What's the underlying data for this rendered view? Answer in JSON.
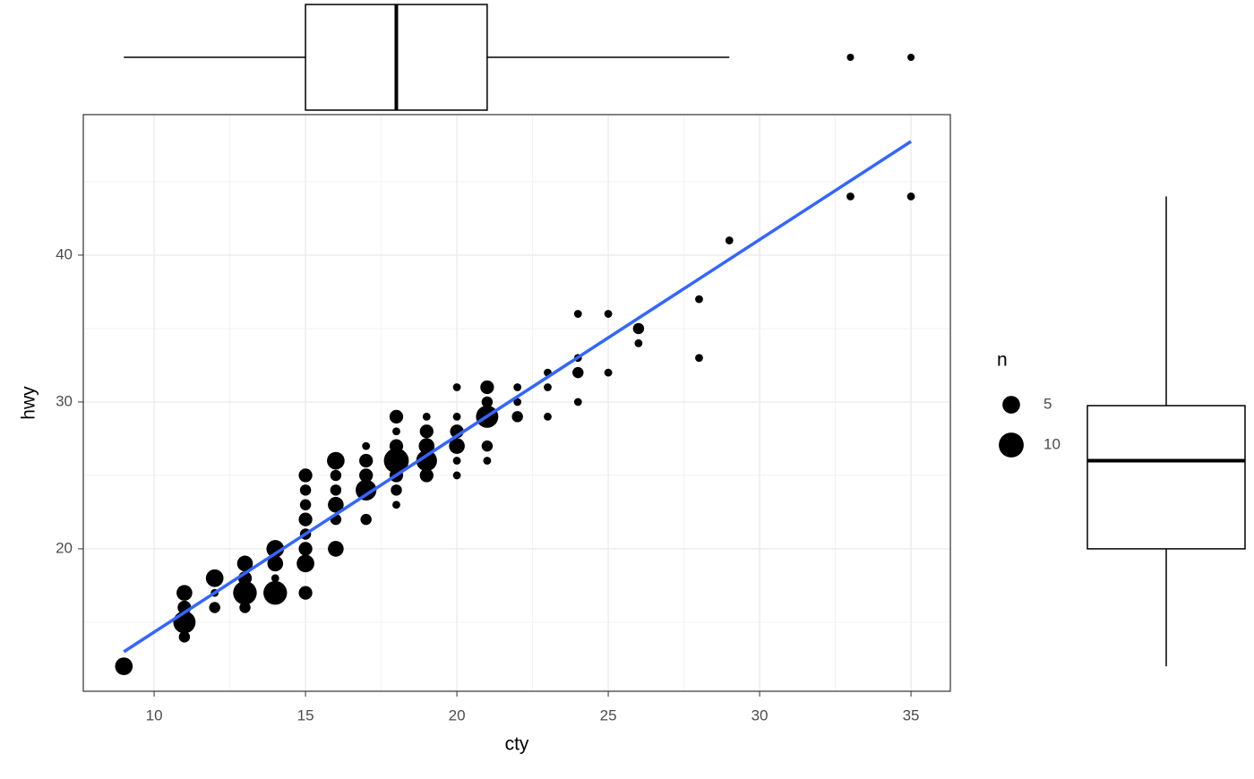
{
  "chart_data": [
    {
      "type": "scatter",
      "x_label": "cty",
      "y_label": "hwy",
      "x": [
        9,
        11,
        11,
        11,
        11,
        12,
        12,
        12,
        13,
        13,
        13,
        13,
        14,
        14,
        14,
        14,
        15,
        15,
        15,
        15,
        15,
        15,
        15,
        15,
        16,
        16,
        16,
        16,
        16,
        16,
        17,
        17,
        17,
        17,
        17,
        18,
        18,
        18,
        18,
        18,
        18,
        18,
        19,
        19,
        19,
        19,
        19,
        20,
        20,
        20,
        20,
        20,
        20,
        21,
        21,
        21,
        21,
        21,
        22,
        22,
        22,
        23,
        23,
        23,
        24,
        24,
        24,
        24,
        25,
        25,
        26,
        26,
        28,
        28,
        29,
        33,
        35
      ],
      "values": [
        12,
        17,
        16,
        15,
        14,
        18,
        16,
        17,
        19,
        17,
        18,
        16,
        20,
        19,
        17,
        18,
        25,
        24,
        23,
        22,
        21,
        20,
        19,
        17,
        26,
        25,
        24,
        23,
        22,
        20,
        27,
        26,
        25,
        24,
        22,
        29,
        28,
        27,
        26,
        25,
        24,
        23,
        29,
        28,
        27,
        26,
        25,
        31,
        29,
        28,
        27,
        26,
        25,
        31,
        30,
        29,
        27,
        26,
        31,
        30,
        29,
        32,
        31,
        29,
        36,
        33,
        32,
        30,
        36,
        32,
        35,
        34,
        37,
        33,
        41,
        44,
        44
      ],
      "sizes": [
        5,
        4,
        3,
        8,
        2,
        5,
        2,
        1,
        4,
        9,
        3,
        2,
        5,
        4,
        9,
        1,
        3,
        2,
        2,
        3,
        2,
        3,
        5,
        3,
        5,
        2,
        2,
        4,
        2,
        4,
        1,
        3,
        3,
        7,
        2,
        3,
        1,
        3,
        10,
        3,
        2,
        1,
        1,
        3,
        4,
        7,
        3,
        1,
        1,
        3,
        4,
        1,
        1,
        3,
        2,
        8,
        2,
        1,
        1,
        1,
        2,
        1,
        1,
        1,
        1,
        1,
        2,
        1,
        1,
        1,
        2,
        1,
        1,
        1,
        1,
        1,
        1
      ],
      "color": "#000000",
      "line": {
        "x": [
          9,
          35
        ],
        "values": [
          12.99,
          47.74
        ],
        "color": "#3366ff"
      },
      "size_legend": {
        "title": "n",
        "values": [
          5,
          10
        ]
      },
      "xlim": [
        7.66,
        36.3
      ],
      "ylim": [
        10.3,
        49.57
      ],
      "xticks": [
        10,
        15,
        20,
        25,
        30,
        35
      ],
      "yticks": [
        20,
        30,
        40
      ],
      "xminorticks": [
        12.5,
        17.5,
        22.5,
        27.5,
        32.5
      ],
      "yminorticks": [
        15,
        25,
        35,
        45
      ],
      "grid": true
    },
    {
      "type": "boxplot",
      "orientation": "horizontal",
      "min": 9,
      "q1": 15,
      "median": 18,
      "q3": 21,
      "max": 29,
      "outliers": [
        33,
        35
      ],
      "xlim": [
        7.66,
        36.3
      ]
    },
    {
      "type": "boxplot",
      "orientation": "vertical",
      "min": 12,
      "q1": 20,
      "median": 26,
      "q3": 29.75,
      "max": 44,
      "outliers": [],
      "ylim": [
        10.3,
        49.57
      ]
    }
  ]
}
